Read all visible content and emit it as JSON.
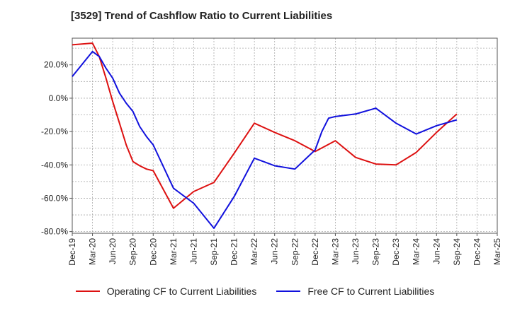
{
  "chart_data": {
    "type": "line",
    "title": "[3529]  Trend of Cashflow Ratio to Current Liabilities",
    "xlabel": "",
    "ylabel": "",
    "x_categories": [
      "Dec-19",
      "Mar-20",
      "Jun-20",
      "Sep-20",
      "Dec-20",
      "Mar-21",
      "Jun-21",
      "Sep-21",
      "Dec-21",
      "Mar-22",
      "Jun-22",
      "Sep-22",
      "Dec-22",
      "Mar-23",
      "Jun-23",
      "Sep-23",
      "Dec-23",
      "Mar-24",
      "Jun-24",
      "Sep-24",
      "Dec-24",
      "Mar-25"
    ],
    "y_ticks": [
      "20.0%",
      "0.0%",
      "-20.0%",
      "-40.0%",
      "-60.0%",
      "-80.0%"
    ],
    "y_tick_values": [
      20,
      0,
      -20,
      -40,
      -60,
      -80
    ],
    "ylim": [
      -81,
      36
    ],
    "grid": true,
    "legend_position": "bottom",
    "series": [
      {
        "name": "Operating CF to Current Liabilities",
        "color": "#dd1111",
        "x": [
          "2019-12",
          "2020-03",
          "2020-04",
          "2020-05",
          "2020-06",
          "2020-07",
          "2020-08",
          "2020-09",
          "2020-10",
          "2020-11",
          "2020-12",
          "2021-03",
          "2021-06",
          "2021-09",
          "2021-12",
          "2022-03",
          "2022-06",
          "2022-09",
          "2022-12",
          "2023-03",
          "2023-06",
          "2023-09",
          "2023-12",
          "2024-03",
          "2024-06",
          "2024-09"
        ],
        "values": [
          32,
          33,
          25,
          12,
          -2,
          -15,
          -28,
          -38,
          -40.5,
          -42.5,
          -43.5,
          -66,
          -56,
          -50.5,
          -33,
          -15,
          -20.5,
          -25.5,
          -32,
          -25.5,
          -35.5,
          -39.5,
          -40,
          -32.5,
          -20.5,
          -9.5
        ]
      },
      {
        "name": "Free CF to Current Liabilities",
        "color": "#1111dd",
        "x": [
          "2019-12",
          "2020-01",
          "2020-02",
          "2020-03",
          "2020-04",
          "2020-05",
          "2020-06",
          "2020-07",
          "2020-08",
          "2020-09",
          "2020-10",
          "2020-11",
          "2020-12",
          "2021-03",
          "2021-06",
          "2021-09",
          "2021-12",
          "2022-03",
          "2022-06",
          "2022-09",
          "2022-12",
          "2023-01",
          "2023-02",
          "2023-03",
          "2023-06",
          "2023-09",
          "2023-12",
          "2024-03",
          "2024-06",
          "2024-09"
        ],
        "values": [
          13,
          18,
          23,
          28,
          25,
          18,
          12,
          3,
          -3,
          -8,
          -17,
          -23,
          -28,
          -54,
          -63,
          -78,
          -59,
          -36,
          -40.5,
          -42.5,
          -31,
          -20,
          -12,
          -11,
          -9.5,
          -6,
          -15,
          -21.5,
          -16.5,
          -13
        ]
      }
    ]
  }
}
